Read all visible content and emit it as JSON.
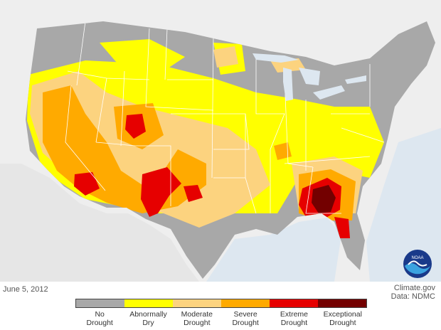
{
  "date": "June 5, 2012",
  "credit": {
    "line1": "Climate.gov",
    "line2": "Data: NDMC"
  },
  "logo_text": "NOAA",
  "legend": [
    {
      "line1": "No",
      "line2": "Drought",
      "color": "#a8a8a8"
    },
    {
      "line1": "Abnormally",
      "line2": "Dry",
      "color": "#ffff00"
    },
    {
      "line1": "Moderate",
      "line2": "Drought",
      "color": "#fcd37f"
    },
    {
      "line1": "Severe",
      "line2": "Drought",
      "color": "#ffaa00"
    },
    {
      "line1": "Extreme",
      "line2": "Drought",
      "color": "#e60000"
    },
    {
      "line1": "Exceptional",
      "line2": "Drought",
      "color": "#730000"
    }
  ],
  "colors": {
    "ocean": "#dde7f0",
    "land_outside": "#eeeeee",
    "state_lines": "#ffffff"
  }
}
